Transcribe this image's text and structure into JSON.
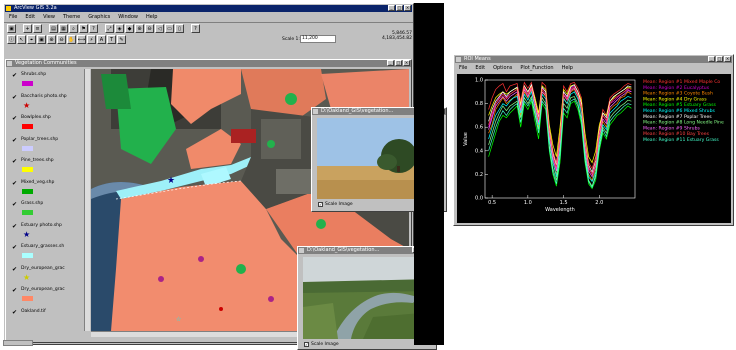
{
  "main_window": {
    "title": "ArcView GIS 3.2a",
    "menu": [
      "File",
      "Edit",
      "View",
      "Theme",
      "Graphics",
      "Window",
      "Help"
    ],
    "scale_label": "Scale 1:",
    "scale_value": "11,200",
    "coords": "5,846.57\n4,183,454.82"
  },
  "view_window": {
    "title": "Vegetation Communities"
  },
  "legend": {
    "items": [
      {
        "label": "Shrubs.shp",
        "color": "#cc00cc",
        "kind": "swatch"
      },
      {
        "label": "Baccharis photo.shp",
        "color": "#cc0000",
        "kind": "star"
      },
      {
        "label": "Bowlplex.shp",
        "color": "#ff0000",
        "kind": "swatch"
      },
      {
        "label": "Poplar_trees.shp",
        "color": "#ccccff",
        "kind": "swatch"
      },
      {
        "label": "Pine_trees.shp",
        "color": "#ffff00",
        "kind": "swatch"
      },
      {
        "label": "Mixed_veg.shp",
        "color": "#00aa00",
        "kind": "swatch"
      },
      {
        "label": "Grass.shp",
        "color": "#33cc33",
        "kind": "swatch"
      },
      {
        "label": "Estuary photo.shp",
        "color": "#000088",
        "kind": "star"
      },
      {
        "label": "Estuary_grasses.sh",
        "color": "#aaffff",
        "kind": "swatch"
      },
      {
        "label": "Dry_european_grac",
        "color": "#cccc00",
        "kind": "star"
      },
      {
        "label": "Dry_european_grac",
        "color": "#ff8866",
        "kind": "swatch"
      },
      {
        "label": "Oakland.tif",
        "color": "#000000",
        "kind": "none"
      }
    ]
  },
  "photo1": {
    "title": "D:\\Oakland_GIS\\vegetation...",
    "checkbox_label": "Scale Image"
  },
  "photo2": {
    "title": "D:\\Oakland_GIS\\vegetation...",
    "checkbox_label": "Scale Image"
  },
  "roi_window": {
    "title": "ROI Means",
    "menu": [
      "File",
      "Edit",
      "Options",
      "Plot_Function",
      "Help"
    ],
    "chart_data": {
      "type": "line",
      "xlabel": "Wavelength",
      "ylabel": "Value",
      "xlim": [
        0.4,
        2.5
      ],
      "ylim": [
        0.0,
        1.0
      ],
      "x_ticks": [
        "0.5",
        "1.0",
        "1.5",
        "2.0"
      ],
      "y_ticks": [
        "0.0",
        "0.2",
        "0.4",
        "0.6",
        "0.8",
        "1.0"
      ],
      "x": [
        0.45,
        0.5,
        0.55,
        0.6,
        0.65,
        0.7,
        0.75,
        0.8,
        0.85,
        0.9,
        0.95,
        1.0,
        1.05,
        1.1,
        1.15,
        1.2,
        1.25,
        1.3,
        1.35,
        1.4,
        1.45,
        1.5,
        1.55,
        1.6,
        1.65,
        1.7,
        1.75,
        1.8,
        1.85,
        1.9,
        1.95,
        2.0,
        2.05,
        2.1,
        2.15,
        2.2,
        2.25,
        2.3,
        2.35,
        2.4,
        2.45
      ],
      "series": [
        {
          "name": "Mean: Region #1 Mixed Maple Co",
          "color": "#ff3333",
          "values": [
            0.75,
            0.85,
            0.92,
            0.95,
            0.97,
            0.9,
            0.95,
            0.96,
            0.97,
            0.82,
            0.98,
            0.93,
            0.98,
            0.85,
            0.7,
            0.98,
            0.95,
            0.6,
            0.4,
            0.3,
            0.55,
            0.95,
            0.9,
            0.97,
            0.98,
            0.93,
            0.85,
            0.5,
            0.3,
            0.25,
            0.35,
            0.6,
            0.75,
            0.7,
            0.85,
            0.88,
            0.9,
            0.92,
            0.95,
            0.97,
            0.96
          ]
        },
        {
          "name": "Mean: Region #2 Eucalyptus",
          "color": "#cc00cc",
          "values": [
            0.6,
            0.7,
            0.8,
            0.85,
            0.9,
            0.85,
            0.88,
            0.9,
            0.92,
            0.75,
            0.93,
            0.88,
            0.95,
            0.8,
            0.65,
            0.93,
            0.9,
            0.55,
            0.35,
            0.25,
            0.5,
            0.9,
            0.85,
            0.93,
            0.95,
            0.9,
            0.8,
            0.45,
            0.25,
            0.2,
            0.3,
            0.55,
            0.7,
            0.65,
            0.8,
            0.82,
            0.85,
            0.88,
            0.9,
            0.92,
            0.9
          ]
        },
        {
          "name": "Mean: Region #3 Coyote Bush",
          "color": "#ff8800",
          "values": [
            0.55,
            0.62,
            0.75,
            0.8,
            0.85,
            0.8,
            0.83,
            0.85,
            0.88,
            0.7,
            0.9,
            0.85,
            0.92,
            0.75,
            0.6,
            0.9,
            0.86,
            0.5,
            0.3,
            0.2,
            0.45,
            0.85,
            0.8,
            0.9,
            0.92,
            0.86,
            0.75,
            0.4,
            0.2,
            0.15,
            0.25,
            0.5,
            0.65,
            0.6,
            0.75,
            0.78,
            0.8,
            0.85,
            0.86,
            0.9,
            0.88
          ]
        },
        {
          "name": "Mean: Region #4 Dry Grass",
          "color": "#ffff00",
          "values": [
            0.7,
            0.78,
            0.85,
            0.88,
            0.9,
            0.88,
            0.9,
            0.92,
            0.93,
            0.8,
            0.95,
            0.9,
            0.95,
            0.85,
            0.72,
            0.95,
            0.92,
            0.62,
            0.45,
            0.35,
            0.6,
            0.92,
            0.88,
            0.95,
            0.96,
            0.9,
            0.83,
            0.55,
            0.35,
            0.3,
            0.4,
            0.62,
            0.72,
            0.7,
            0.82,
            0.85,
            0.88,
            0.9,
            0.92,
            0.94,
            0.93
          ]
        },
        {
          "name": "Mean: Region #5 Estuary Grass",
          "color": "#00ff00",
          "values": [
            0.35,
            0.45,
            0.55,
            0.65,
            0.7,
            0.68,
            0.72,
            0.75,
            0.78,
            0.6,
            0.8,
            0.75,
            0.82,
            0.65,
            0.5,
            0.8,
            0.75,
            0.4,
            0.2,
            0.1,
            0.3,
            0.72,
            0.68,
            0.8,
            0.82,
            0.75,
            0.62,
            0.3,
            0.12,
            0.08,
            0.15,
            0.4,
            0.55,
            0.5,
            0.62,
            0.66,
            0.7,
            0.72,
            0.75,
            0.78,
            0.76
          ]
        },
        {
          "name": "Mean: Region #6 Mixed Shrubs",
          "color": "#00ffff",
          "values": [
            0.5,
            0.6,
            0.7,
            0.75,
            0.8,
            0.78,
            0.82,
            0.85,
            0.86,
            0.72,
            0.88,
            0.83,
            0.9,
            0.76,
            0.62,
            0.88,
            0.84,
            0.5,
            0.3,
            0.18,
            0.42,
            0.84,
            0.8,
            0.88,
            0.9,
            0.84,
            0.72,
            0.38,
            0.18,
            0.14,
            0.22,
            0.48,
            0.62,
            0.58,
            0.72,
            0.75,
            0.78,
            0.82,
            0.84,
            0.86,
            0.85
          ]
        },
        {
          "name": "Mean: Region #7 Poplar Trees",
          "color": "#ffffff",
          "values": [
            0.65,
            0.75,
            0.82,
            0.86,
            0.9,
            0.86,
            0.9,
            0.92,
            0.94,
            0.78,
            0.95,
            0.9,
            0.96,
            0.82,
            0.68,
            0.94,
            0.9,
            0.58,
            0.38,
            0.28,
            0.52,
            0.9,
            0.86,
            0.94,
            0.96,
            0.9,
            0.8,
            0.48,
            0.28,
            0.22,
            0.32,
            0.58,
            0.72,
            0.68,
            0.82,
            0.86,
            0.88,
            0.9,
            0.92,
            0.95,
            0.94
          ]
        },
        {
          "name": "Mean: Region #8 Long Needle Pine",
          "color": "#88ff88",
          "values": [
            0.45,
            0.55,
            0.65,
            0.72,
            0.78,
            0.74,
            0.78,
            0.8,
            0.82,
            0.68,
            0.85,
            0.8,
            0.86,
            0.72,
            0.58,
            0.85,
            0.8,
            0.45,
            0.25,
            0.15,
            0.38,
            0.8,
            0.76,
            0.85,
            0.86,
            0.8,
            0.68,
            0.35,
            0.15,
            0.1,
            0.2,
            0.45,
            0.6,
            0.55,
            0.68,
            0.72,
            0.75,
            0.78,
            0.8,
            0.83,
            0.82
          ]
        },
        {
          "name": "Mean: Region #9 Shrubs",
          "color": "#ff66ff",
          "values": [
            0.58,
            0.68,
            0.78,
            0.82,
            0.86,
            0.82,
            0.86,
            0.88,
            0.9,
            0.74,
            0.92,
            0.86,
            0.93,
            0.78,
            0.64,
            0.9,
            0.87,
            0.53,
            0.33,
            0.23,
            0.47,
            0.87,
            0.83,
            0.91,
            0.93,
            0.87,
            0.77,
            0.43,
            0.23,
            0.18,
            0.28,
            0.53,
            0.67,
            0.63,
            0.77,
            0.8,
            0.83,
            0.86,
            0.88,
            0.91,
            0.9
          ]
        },
        {
          "name": "Mean: Region #10 Bay Trees",
          "color": "#ff4444",
          "values": [
            0.62,
            0.72,
            0.8,
            0.84,
            0.88,
            0.84,
            0.88,
            0.9,
            0.92,
            0.76,
            0.94,
            0.88,
            0.94,
            0.8,
            0.66,
            0.92,
            0.88,
            0.56,
            0.36,
            0.26,
            0.5,
            0.88,
            0.84,
            0.92,
            0.94,
            0.88,
            0.78,
            0.46,
            0.26,
            0.2,
            0.3,
            0.56,
            0.7,
            0.66,
            0.8,
            0.84,
            0.86,
            0.88,
            0.9,
            0.93,
            0.92
          ]
        },
        {
          "name": "Mean: Region #11 Estuary Grass",
          "color": "#44ffcc",
          "values": [
            0.4,
            0.5,
            0.6,
            0.68,
            0.74,
            0.7,
            0.75,
            0.78,
            0.8,
            0.64,
            0.82,
            0.78,
            0.84,
            0.7,
            0.55,
            0.82,
            0.78,
            0.42,
            0.22,
            0.12,
            0.34,
            0.76,
            0.72,
            0.82,
            0.84,
            0.78,
            0.65,
            0.32,
            0.14,
            0.09,
            0.18,
            0.42,
            0.58,
            0.52,
            0.65,
            0.69,
            0.72,
            0.75,
            0.78,
            0.8,
            0.79
          ]
        }
      ]
    }
  }
}
